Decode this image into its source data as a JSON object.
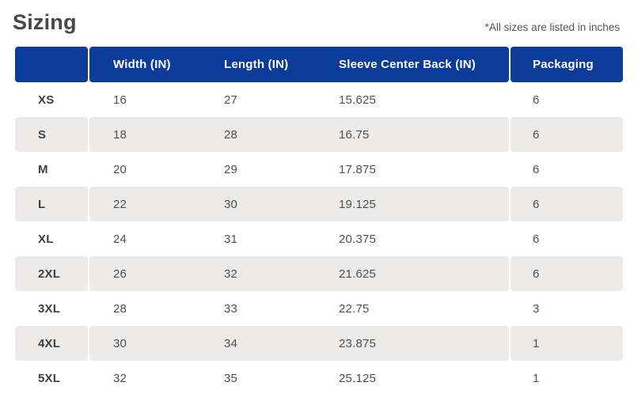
{
  "page": {
    "title": "Sizing",
    "note": "*All sizes are listed in inches"
  },
  "table": {
    "columns": [
      "",
      "Width (IN)",
      "Length (IN)",
      "Sleeve Center Back (IN)",
      "Packaging"
    ],
    "rows": [
      {
        "size": "XS",
        "width": "16",
        "length": "27",
        "sleeve": "15.625",
        "packaging": "6"
      },
      {
        "size": "S",
        "width": "18",
        "length": "28",
        "sleeve": "16.75",
        "packaging": "6"
      },
      {
        "size": "M",
        "width": "20",
        "length": "29",
        "sleeve": "17.875",
        "packaging": "6"
      },
      {
        "size": "L",
        "width": "22",
        "length": "30",
        "sleeve": "19.125",
        "packaging": "6"
      },
      {
        "size": "XL",
        "width": "24",
        "length": "31",
        "sleeve": "20.375",
        "packaging": "6"
      },
      {
        "size": "2XL",
        "width": "26",
        "length": "32",
        "sleeve": "21.625",
        "packaging": "6"
      },
      {
        "size": "3XL",
        "width": "28",
        "length": "33",
        "sleeve": "22.75",
        "packaging": "3"
      },
      {
        "size": "4XL",
        "width": "30",
        "length": "34",
        "sleeve": "23.875",
        "packaging": "1"
      },
      {
        "size": "5XL",
        "width": "32",
        "length": "35",
        "sleeve": "25.125",
        "packaging": "1"
      }
    ]
  },
  "colors": {
    "header_bg": "#0b3b9b",
    "header_text": "#ffffff",
    "row_alt_bg": "#ecebea",
    "title_text": "#474747",
    "size_text": "#3f4041",
    "body_text": "#4f5051",
    "note_text": "#565656"
  }
}
